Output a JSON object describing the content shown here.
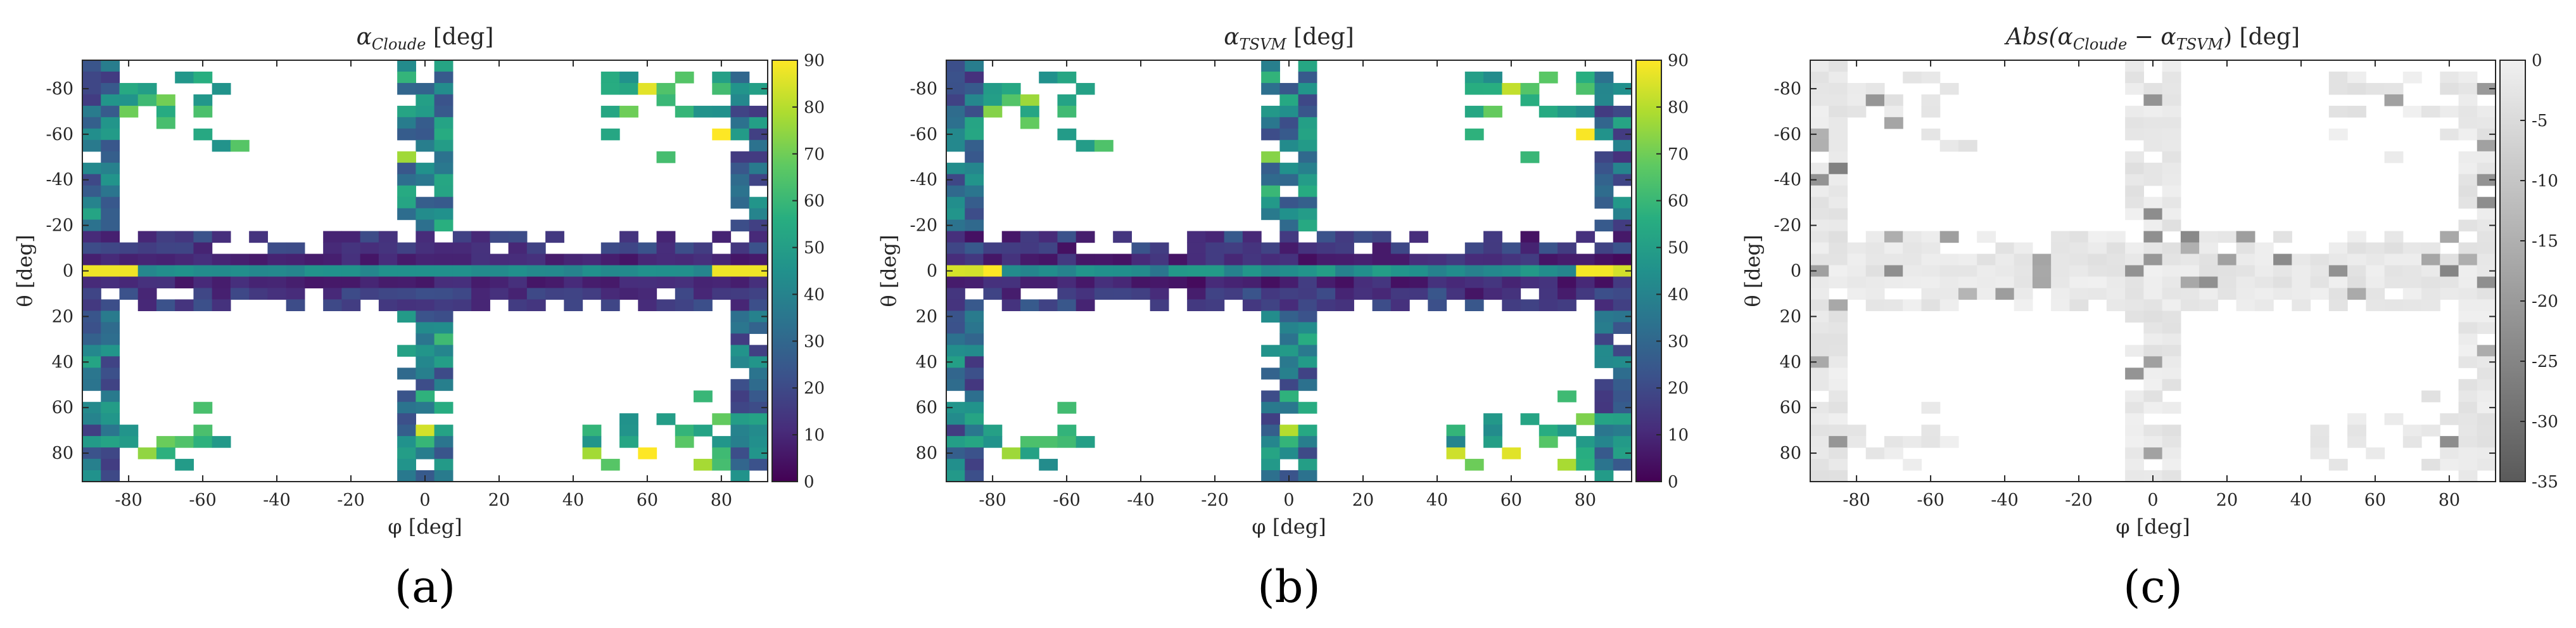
{
  "figure": {
    "panels": [
      {
        "id": "a",
        "title_main": "α",
        "title_sub": "Cloude",
        "title_tail": " [deg]",
        "xlabel": "φ [deg]",
        "ylabel": "θ [deg]",
        "sublabel": "(a)",
        "colormap": "viridis",
        "clim": [
          0,
          90
        ],
        "colorbar_ticks": [
          "0",
          "10",
          "20",
          "30",
          "40",
          "50",
          "60",
          "70",
          "80",
          "90"
        ]
      },
      {
        "id": "b",
        "title_main": "α",
        "title_sub": "TSVM",
        "title_tail": " [deg]",
        "xlabel": "φ [deg]",
        "ylabel": "θ [deg]",
        "sublabel": "(b)",
        "colormap": "viridis",
        "clim": [
          0,
          90
        ],
        "colorbar_ticks": [
          "0",
          "10",
          "20",
          "30",
          "40",
          "50",
          "60",
          "70",
          "80",
          "90"
        ]
      },
      {
        "id": "c",
        "title_main": "Abs(α",
        "title_sub": "Cloude",
        "title_mid": " − α",
        "title_sub2": "TSVM",
        "title_tail": ") [deg]",
        "xlabel": "φ [deg]",
        "ylabel": "θ [deg]",
        "sublabel": "(c)",
        "colormap": "gray",
        "clim": [
          -35,
          0
        ],
        "colorbar_ticks": [
          "-35",
          "-30",
          "-25",
          "-20",
          "-15",
          "-10",
          "-5",
          "0"
        ]
      }
    ],
    "x_ticks": [
      "-80",
      "-60",
      "-40",
      "-20",
      "0",
      "20",
      "40",
      "60",
      "80"
    ],
    "y_ticks": [
      "-80",
      "-60",
      "-40",
      "-20",
      "0",
      "20",
      "40",
      "60",
      "80"
    ]
  },
  "chart_data": [
    {
      "type": "heatmap",
      "title": "α_Cloude [deg]",
      "xlabel": "φ [deg]",
      "ylabel": "θ [deg]",
      "xlim": [
        -92.5,
        92.5
      ],
      "ylim": [
        -92.5,
        92.5
      ],
      "grid_step_deg": 5,
      "color_range": [
        0,
        90
      ],
      "description": "Sparse heatmap; values near 0 at φ=±90 and θ=0 region, ~45 along θ=0 row, ~90 at θ=0 edges; white = no data"
    },
    {
      "type": "heatmap",
      "title": "α_TSVM [deg]",
      "xlabel": "φ [deg]",
      "ylabel": "θ [deg]",
      "xlim": [
        -92.5,
        92.5
      ],
      "ylim": [
        -92.5,
        92.5
      ],
      "grid_step_deg": 5,
      "color_range": [
        0,
        90
      ]
    },
    {
      "type": "heatmap",
      "title": "Abs(α_Cloude − α_TSVM) [deg]",
      "xlabel": "φ [deg]",
      "ylabel": "θ [deg]",
      "xlim": [
        -92.5,
        92.5
      ],
      "ylim": [
        -92.5,
        92.5
      ],
      "grid_step_deg": 5,
      "color_range": [
        -35,
        0
      ]
    }
  ]
}
